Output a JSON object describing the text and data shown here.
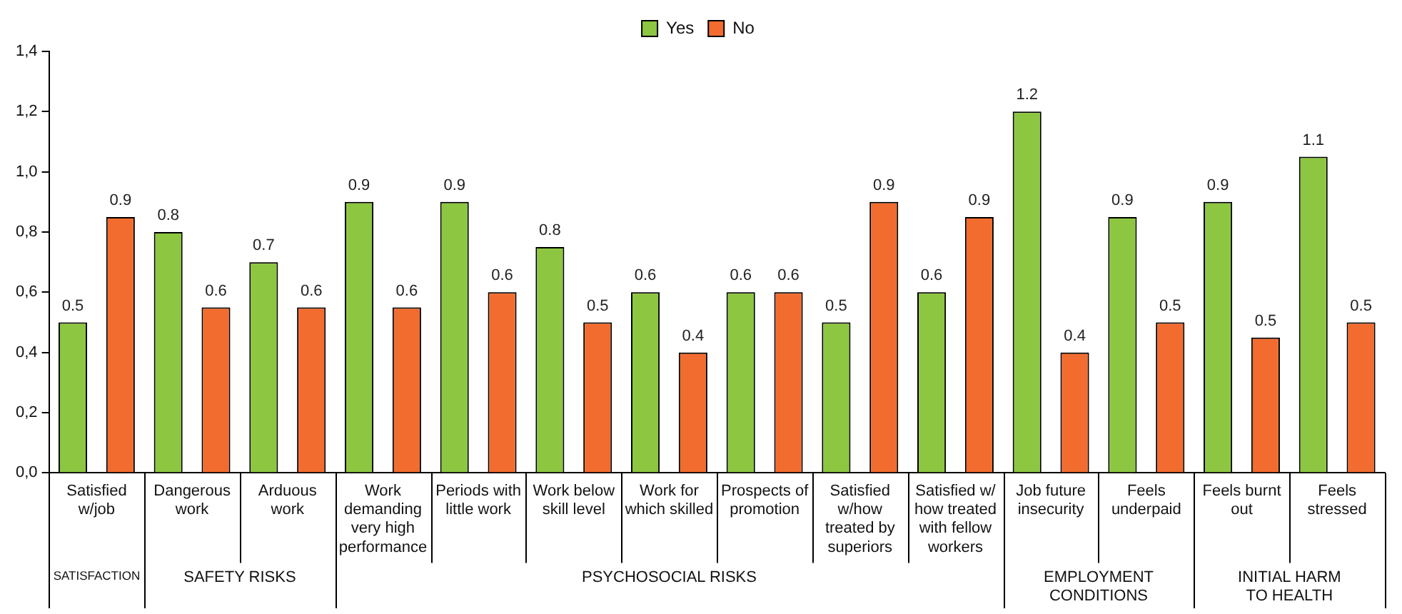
{
  "chart_data": {
    "type": "bar",
    "categories": [
      "Satisfied\nw/job",
      "Dangerous\nwork",
      "Arduous\nwork",
      "Work\ndemanding\nvery high\nperformance",
      "Periods with\nlittle work",
      "Work below\nskill level",
      "Work for\nwhich skilled",
      "Prospects of\npromotion",
      "Satisfied\nw/how\ntreated by\nsuperiors",
      "Satisfied w/\nhow treated\nwith fellow\nworkers",
      "Job future\ninsecurity",
      "Feels\nunderpaid",
      "Feels burnt\nout",
      "Feels\nstressed"
    ],
    "series": [
      {
        "name": "Yes",
        "color": "#8dc641",
        "values": [
          0.5,
          0.8,
          0.7,
          0.9,
          0.9,
          0.75,
          0.6,
          0.6,
          0.5,
          0.6,
          1.2,
          0.85,
          0.9,
          1.05
        ],
        "value_labels": [
          "0.5",
          "0.8",
          "0.7",
          "0.9",
          "0.9",
          "0.8",
          "0.6",
          "0.6",
          "0.5",
          "0.6",
          "1.2",
          "0.9",
          "0.9",
          "1.1"
        ]
      },
      {
        "name": "No",
        "color": "#f26c2f",
        "values": [
          0.85,
          0.55,
          0.55,
          0.55,
          0.6,
          0.5,
          0.4,
          0.6,
          0.9,
          0.85,
          0.4,
          0.5,
          0.45,
          0.5
        ],
        "value_labels": [
          "0.9",
          "0.6",
          "0.6",
          "0.6",
          "0.6",
          "0.5",
          "0.4",
          "0.6",
          "0.9",
          "0.9",
          "0.4",
          "0.5",
          "0.5",
          "0.5"
        ]
      }
    ],
    "ylim": [
      0,
      1.4
    ],
    "yticks": [
      {
        "value": 0,
        "label": "0,0"
      },
      {
        "value": 0.2,
        "label": "0,2"
      },
      {
        "value": 0.4,
        "label": "0,4"
      },
      {
        "value": 0.6,
        "label": "0,6"
      },
      {
        "value": 0.8,
        "label": "0,8"
      },
      {
        "value": 1,
        "label": "1,0"
      },
      {
        "value": 1.2,
        "label": "1,2"
      },
      {
        "value": 1.4,
        "label": "1,4"
      }
    ],
    "legend": "top",
    "annotations": [
      "SATISFACTION",
      "SAFETY RISKS",
      "PSYCHOSOCIAL RISKS",
      "EMPLOYMENT\nCONDITIONS",
      "INITIAL HARM\nTO HEALTH"
    ]
  }
}
